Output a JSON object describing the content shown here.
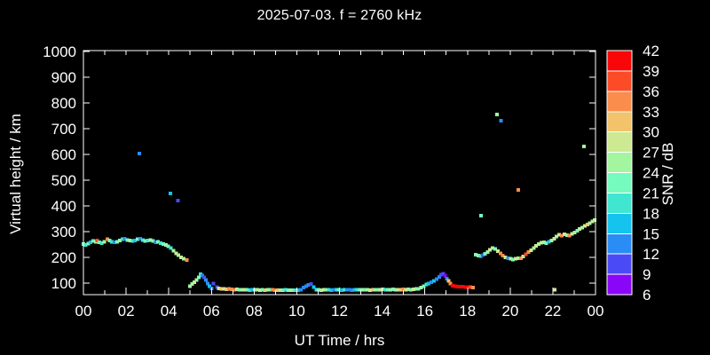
{
  "title": "2025-07-03. f = 2760 kHz",
  "colors": {
    "background": "#000000",
    "foreground": "#FFFFFF"
  },
  "chart_data": {
    "type": "scatter",
    "title": "2025-07-03. f = 2760 kHz",
    "xlabel": "UT Time / hrs",
    "ylabel": "Virtual height / km",
    "colorbar_label": "SNR / dB",
    "xlim_hours": [
      0,
      24
    ],
    "ylim_km": [
      100,
      1000
    ],
    "grid": false,
    "x_label_ticks_hours": [
      0,
      2,
      4,
      6,
      8,
      10,
      12,
      14,
      16,
      18,
      20,
      22,
      24
    ],
    "x_tick_labels": [
      "00",
      "02",
      "04",
      "06",
      "08",
      "10",
      "12",
      "14",
      "16",
      "18",
      "20",
      "22",
      "00"
    ],
    "y_ticks_km": [
      100,
      200,
      300,
      400,
      500,
      600,
      700,
      800,
      900,
      1000
    ],
    "snr_scale": {
      "min": 6,
      "max": 42,
      "step": 3,
      "levels": [
        6,
        9,
        12,
        15,
        18,
        21,
        24,
        27,
        30,
        33,
        36,
        39,
        42
      ],
      "palette_low_to_high": [
        "#8A06F8",
        "#4A4BF5",
        "#2A8CF5",
        "#14C3EE",
        "#40E6D0",
        "#76FBBF",
        "#A4F5A0",
        "#CDE992",
        "#F2C36B",
        "#FB8D4C",
        "#FB4B27",
        "#F90708"
      ]
    },
    "points_format": [
      "ut_hours",
      "virtual_height_km",
      "snr_db"
    ],
    "points": [
      [
        0.0,
        252,
        21
      ],
      [
        0.1,
        249,
        18
      ],
      [
        0.22,
        254,
        21
      ],
      [
        0.34,
        259,
        15
      ],
      [
        0.46,
        263,
        21
      ],
      [
        0.58,
        261,
        24
      ],
      [
        0.64,
        265,
        38
      ],
      [
        0.74,
        258,
        21
      ],
      [
        0.86,
        256,
        18
      ],
      [
        0.98,
        261,
        24
      ],
      [
        1.13,
        271,
        34
      ],
      [
        1.22,
        266,
        21
      ],
      [
        1.34,
        261,
        18
      ],
      [
        1.46,
        258,
        13
      ],
      [
        1.58,
        261,
        21
      ],
      [
        1.7,
        266,
        24
      ],
      [
        1.82,
        270,
        18
      ],
      [
        1.94,
        273,
        12
      ],
      [
        2.06,
        268,
        21
      ],
      [
        2.18,
        265,
        24
      ],
      [
        2.3,
        263,
        18
      ],
      [
        2.42,
        266,
        15
      ],
      [
        2.54,
        270,
        21
      ],
      [
        2.66,
        273,
        12
      ],
      [
        2.78,
        268,
        19
      ],
      [
        2.9,
        264,
        21
      ],
      [
        3.02,
        266,
        18
      ],
      [
        3.14,
        268,
        24
      ],
      [
        3.26,
        263,
        21
      ],
      [
        3.38,
        258,
        13
      ],
      [
        3.5,
        261,
        21
      ],
      [
        3.62,
        256,
        18
      ],
      [
        3.74,
        252,
        21
      ],
      [
        3.86,
        248,
        24
      ],
      [
        3.98,
        243,
        21
      ],
      [
        4.1,
        236,
        19
      ],
      [
        4.22,
        226,
        24
      ],
      [
        4.34,
        216,
        27
      ],
      [
        4.46,
        208,
        24
      ],
      [
        4.58,
        200,
        27
      ],
      [
        4.7,
        194,
        24
      ],
      [
        4.85,
        190,
        34
      ],
      [
        5.0,
        88,
        24
      ],
      [
        5.1,
        96,
        24
      ],
      [
        5.2,
        104,
        27
      ],
      [
        5.3,
        112,
        24
      ],
      [
        5.4,
        122,
        21
      ],
      [
        5.5,
        134,
        18
      ],
      [
        5.58,
        130,
        13
      ],
      [
        5.66,
        122,
        10
      ],
      [
        5.74,
        112,
        13
      ],
      [
        5.82,
        99,
        13
      ],
      [
        5.9,
        88,
        15
      ],
      [
        6.0,
        80,
        13
      ],
      [
        6.1,
        98,
        10
      ],
      [
        6.25,
        85,
        10
      ],
      [
        6.35,
        79,
        27
      ],
      [
        6.47,
        78,
        30
      ],
      [
        6.59,
        77,
        27
      ],
      [
        6.71,
        76,
        30
      ],
      [
        6.83,
        77,
        33
      ],
      [
        6.95,
        76,
        34
      ],
      [
        7.07,
        75,
        33
      ],
      [
        7.19,
        76,
        27
      ],
      [
        7.31,
        75,
        21
      ],
      [
        7.43,
        74,
        24
      ],
      [
        7.55,
        75,
        27
      ],
      [
        7.67,
        74,
        21
      ],
      [
        7.79,
        73,
        18
      ],
      [
        7.91,
        74,
        15
      ],
      [
        8.03,
        75,
        21
      ],
      [
        8.15,
        74,
        24
      ],
      [
        8.27,
        73,
        27
      ],
      [
        8.39,
        74,
        21
      ],
      [
        8.51,
        73,
        30
      ],
      [
        8.63,
        74,
        24
      ],
      [
        8.75,
        75,
        21
      ],
      [
        8.87,
        74,
        33
      ],
      [
        8.99,
        73,
        33
      ],
      [
        9.11,
        73,
        30
      ],
      [
        9.23,
        72,
        24
      ],
      [
        9.35,
        73,
        21
      ],
      [
        9.47,
        74,
        18
      ],
      [
        9.59,
        73,
        21
      ],
      [
        9.71,
        72,
        24
      ],
      [
        9.83,
        73,
        21
      ],
      [
        9.95,
        72,
        18
      ],
      [
        10.07,
        73,
        15
      ],
      [
        10.19,
        74,
        13
      ],
      [
        10.31,
        82,
        12
      ],
      [
        10.43,
        88,
        13
      ],
      [
        10.55,
        93,
        12
      ],
      [
        10.67,
        97,
        10
      ],
      [
        10.79,
        84,
        15
      ],
      [
        10.91,
        75,
        18
      ],
      [
        11.03,
        74,
        21
      ],
      [
        11.15,
        73,
        24
      ],
      [
        11.27,
        74,
        27
      ],
      [
        11.39,
        75,
        21
      ],
      [
        11.51,
        74,
        18
      ],
      [
        11.63,
        73,
        15
      ],
      [
        11.75,
        74,
        13
      ],
      [
        11.87,
        75,
        18
      ],
      [
        11.99,
        74,
        21
      ],
      [
        12.11,
        73,
        15
      ],
      [
        12.23,
        74,
        18
      ],
      [
        12.35,
        75,
        13
      ],
      [
        12.47,
        74,
        12
      ],
      [
        12.59,
        73,
        13
      ],
      [
        12.71,
        74,
        15
      ],
      [
        12.83,
        75,
        18
      ],
      [
        12.95,
        74,
        21
      ],
      [
        13.07,
        74,
        24
      ],
      [
        13.19,
        75,
        21
      ],
      [
        13.31,
        74,
        24
      ],
      [
        13.43,
        73,
        27
      ],
      [
        13.55,
        74,
        30
      ],
      [
        13.67,
        75,
        24
      ],
      [
        13.79,
        74,
        21
      ],
      [
        13.91,
        75,
        27
      ],
      [
        14.03,
        76,
        24
      ],
      [
        14.15,
        75,
        18
      ],
      [
        14.27,
        74,
        21
      ],
      [
        14.39,
        75,
        24
      ],
      [
        14.51,
        76,
        21
      ],
      [
        14.63,
        75,
        24
      ],
      [
        14.75,
        74,
        27
      ],
      [
        14.87,
        75,
        30
      ],
      [
        14.99,
        76,
        33
      ],
      [
        15.11,
        75,
        27
      ],
      [
        15.23,
        76,
        24
      ],
      [
        15.35,
        75,
        21
      ],
      [
        15.47,
        76,
        27
      ],
      [
        15.59,
        77,
        24
      ],
      [
        15.71,
        78,
        21
      ],
      [
        15.83,
        82,
        24
      ],
      [
        15.95,
        88,
        21
      ],
      [
        16.07,
        94,
        18
      ],
      [
        16.19,
        99,
        15
      ],
      [
        16.31,
        103,
        13
      ],
      [
        16.43,
        108,
        15
      ],
      [
        16.55,
        115,
        13
      ],
      [
        16.67,
        124,
        12
      ],
      [
        16.77,
        132,
        10
      ],
      [
        16.87,
        137,
        9
      ],
      [
        16.95,
        130,
        8
      ],
      [
        17.03,
        118,
        13
      ],
      [
        17.11,
        108,
        31
      ],
      [
        17.19,
        98,
        34
      ],
      [
        17.3,
        90,
        41
      ],
      [
        17.42,
        88,
        42
      ],
      [
        17.54,
        87,
        42
      ],
      [
        17.66,
        86,
        42
      ],
      [
        17.78,
        86,
        42
      ],
      [
        17.9,
        85,
        41
      ],
      [
        18.02,
        84,
        39
      ],
      [
        18.14,
        84,
        36
      ],
      [
        18.26,
        83,
        34
      ],
      [
        18.38,
        210,
        21
      ],
      [
        18.5,
        207,
        24
      ],
      [
        18.62,
        205,
        18
      ],
      [
        18.72,
        208,
        10
      ],
      [
        18.82,
        213,
        21
      ],
      [
        18.94,
        221,
        24
      ],
      [
        19.06,
        230,
        27
      ],
      [
        19.18,
        236,
        24
      ],
      [
        19.3,
        233,
        21
      ],
      [
        19.42,
        224,
        27
      ],
      [
        19.54,
        215,
        33
      ],
      [
        19.66,
        207,
        34
      ],
      [
        19.78,
        200,
        27
      ],
      [
        19.9,
        196,
        12
      ],
      [
        20.02,
        194,
        24
      ],
      [
        20.14,
        192,
        21
      ],
      [
        20.26,
        194,
        27
      ],
      [
        20.38,
        197,
        24
      ],
      [
        20.5,
        196,
        33
      ],
      [
        20.62,
        203,
        27
      ],
      [
        20.74,
        212,
        36
      ],
      [
        20.86,
        220,
        34
      ],
      [
        20.98,
        228,
        27
      ],
      [
        21.1,
        236,
        24
      ],
      [
        21.22,
        245,
        27
      ],
      [
        21.34,
        252,
        24
      ],
      [
        21.46,
        257,
        27
      ],
      [
        21.58,
        259,
        24
      ],
      [
        21.7,
        255,
        21
      ],
      [
        21.82,
        261,
        15
      ],
      [
        21.94,
        266,
        24
      ],
      [
        22.06,
        272,
        27
      ],
      [
        22.18,
        281,
        24
      ],
      [
        22.3,
        288,
        27
      ],
      [
        22.42,
        285,
        33
      ],
      [
        22.54,
        290,
        27
      ],
      [
        22.66,
        287,
        24
      ],
      [
        22.78,
        284,
        34
      ],
      [
        22.9,
        292,
        27
      ],
      [
        23.02,
        297,
        24
      ],
      [
        23.14,
        303,
        21
      ],
      [
        23.26,
        310,
        27
      ],
      [
        23.38,
        316,
        24
      ],
      [
        23.5,
        322,
        27
      ],
      [
        23.62,
        328,
        30
      ],
      [
        23.74,
        333,
        24
      ],
      [
        23.86,
        339,
        27
      ],
      [
        23.96,
        345,
        24
      ],
      [
        2.62,
        603,
        13
      ],
      [
        4.08,
        448,
        16
      ],
      [
        4.43,
        421,
        10
      ],
      [
        18.64,
        362,
        22
      ],
      [
        19.39,
        755,
        25
      ],
      [
        19.56,
        731,
        13
      ],
      [
        20.39,
        462,
        34
      ],
      [
        22.08,
        75,
        28
      ],
      [
        23.46,
        631,
        25
      ]
    ]
  }
}
